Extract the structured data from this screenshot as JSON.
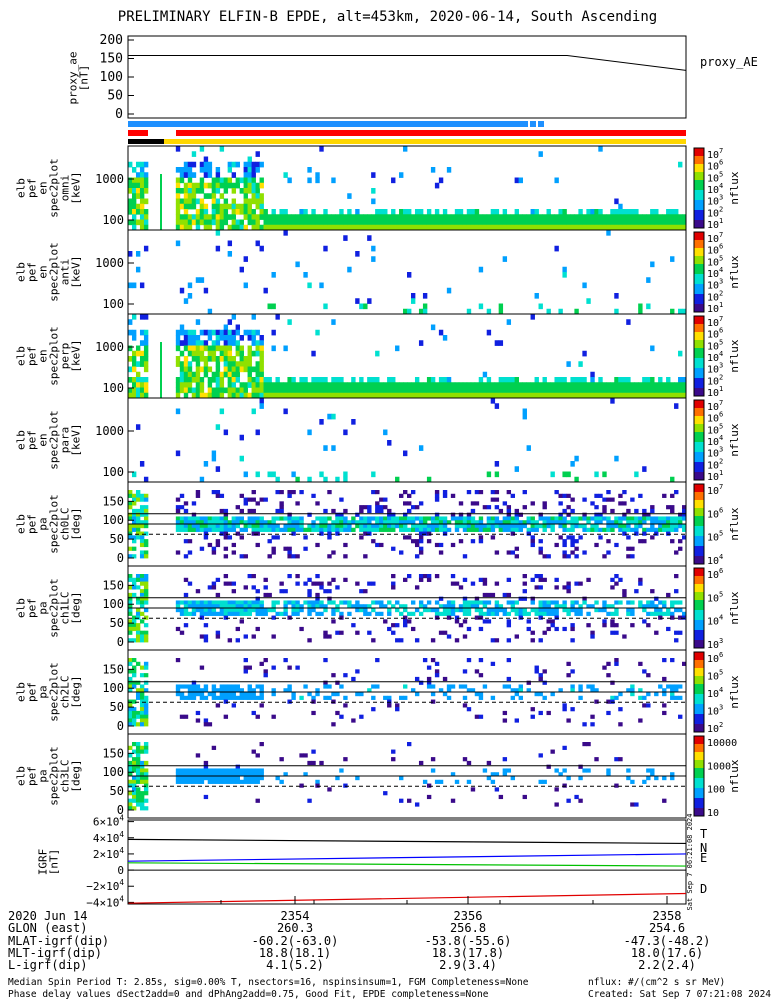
{
  "title": "PRELIMINARY ELFIN-B EPDE, alt=453km, 2020-06-14, South Ascending",
  "proxy_ae": {
    "ylabel": "proxy_ae\n[nT]",
    "legend": "proxy_AE",
    "yticks": [
      "200",
      "150",
      "100",
      "50",
      "0"
    ],
    "ylim": [
      0,
      200
    ],
    "series": [
      {
        "t": 0.0,
        "v": 158
      },
      {
        "t": 0.787,
        "v": 158
      },
      {
        "t": 1.0,
        "v": 118
      }
    ]
  },
  "panels": [
    {
      "id": "pef_en_spec2plot_omni",
      "ylabel": "elb\npef\nen\nspec2plot\nomni\n[keV]",
      "yticks": [
        "1000",
        "100"
      ],
      "cbar_ticks": [
        "10^7",
        "10^6",
        "10^5",
        "10^4",
        "10^3",
        "10^2",
        "10^1"
      ],
      "cbar_label": "nflux",
      "kind": "energy",
      "intensity": 1.0
    },
    {
      "id": "pef_en_spec2plot_anti",
      "ylabel": "elb\npef\nen\nspec2plot\nanti\n[keV]",
      "yticks": [
        "1000",
        "100"
      ],
      "cbar_ticks": [
        "10^7",
        "10^6",
        "10^5",
        "10^4",
        "10^3",
        "10^2",
        "10^1"
      ],
      "cbar_label": "nflux",
      "kind": "energy",
      "intensity": 0.25
    },
    {
      "id": "pef_en_spec2plot_perp",
      "ylabel": "elb\npef\nen\nspec2plot\nperp\n[keV]",
      "yticks": [
        "1000",
        "100"
      ],
      "cbar_ticks": [
        "10^7",
        "10^6",
        "10^5",
        "10^4",
        "10^3",
        "10^2",
        "10^1"
      ],
      "cbar_label": "nflux",
      "kind": "energy",
      "intensity": 1.0
    },
    {
      "id": "pef_en_spec2plot_para",
      "ylabel": "elb\npef\nen\nspec2plot\npara\n[keV]",
      "yticks": [
        "1000",
        "100"
      ],
      "cbar_ticks": [
        "10^7",
        "10^6",
        "10^5",
        "10^4",
        "10^3",
        "10^2",
        "10^1"
      ],
      "cbar_label": "nflux",
      "kind": "energy",
      "intensity": 0.2
    },
    {
      "id": "pef_pa_spec2plot_ch0LC",
      "ylabel": "elb\npef\npa\nspec2plot\nch0LC\n[deg]",
      "yticks": [
        "150",
        "100",
        "50",
        "0"
      ],
      "cbar_ticks": [
        "10^7",
        "10^6",
        "10^5",
        "10^4"
      ],
      "cbar_label": "nflux",
      "kind": "pitch",
      "intensity": 1.0
    },
    {
      "id": "pef_pa_spec2plot_ch1LC",
      "ylabel": "elb\npef\npa\nspec2plot\nch1LC\n[deg]",
      "yticks": [
        "150",
        "100",
        "50",
        "0"
      ],
      "cbar_ticks": [
        "10^6",
        "10^5",
        "10^4",
        "10^3"
      ],
      "cbar_label": "nflux",
      "kind": "pitch",
      "intensity": 0.7
    },
    {
      "id": "pef_pa_spec2plot_ch2LC",
      "ylabel": "elb\npef\npa\nspec2plot\nch2LC\n[deg]",
      "yticks": [
        "150",
        "100",
        "50",
        "0"
      ],
      "cbar_ticks": [
        "10^6",
        "10^5",
        "10^4",
        "10^3",
        "10^2"
      ],
      "cbar_label": "nflux",
      "kind": "pitch",
      "intensity": 0.3
    },
    {
      "id": "pef_pa_spec2plot_ch3LC",
      "ylabel": "elb\npef\npa\nspec2plot\nch3LC\n[deg]",
      "yticks": [
        "150",
        "100",
        "50",
        "0"
      ],
      "cbar_ticks": [
        "10000",
        "1000",
        "100",
        "10"
      ],
      "cbar_label": "nflux",
      "kind": "pitch",
      "intensity": 0.15
    }
  ],
  "igrf": {
    "ylabel": "IGRF\n[nT]",
    "yticks": [
      "6×10^4",
      "4×10^4",
      "2×10^4",
      "0",
      "−2×10^4",
      "−4×10^4"
    ],
    "ylim": [
      -42000,
      62000
    ],
    "legend": [
      {
        "label": "T",
        "color": "#000000"
      },
      {
        "label": "N",
        "color": "#0000ff"
      },
      {
        "label": "E",
        "color": "#00c000"
      },
      {
        "label": "D",
        "color": "#e00000"
      }
    ],
    "series": [
      {
        "name": "T",
        "color": "#000000",
        "v0": 38000,
        "v1": 33000
      },
      {
        "name": "N",
        "color": "#0000ff",
        "v0": 11000,
        "v1": 20000
      },
      {
        "name": "E",
        "color": "#00c000",
        "v0": 9000,
        "v1": 5000
      },
      {
        "name": "D",
        "color": "#e00000",
        "v0": -41000,
        "v1": -29000
      }
    ],
    "side_stamp": "Sat Sep  7 06:21:08 2024"
  },
  "xaxis": {
    "row_labels": [
      "2020 Jun 14",
      "GLON (east)",
      "MLAT-igrf(dip)",
      "MLT-igrf(dip)",
      "L-igrf(dip)"
    ],
    "ticks": [
      {
        "time": "2354",
        "glon": "260.3",
        "mlat": "-60.2(-63.0)",
        "mlt": "18.8(18.1)",
        "l": "4.1(5.2)"
      },
      {
        "time": "2356",
        "glon": "256.8",
        "mlat": "-53.8(-55.6)",
        "mlt": "18.3(17.8)",
        "l": "2.9(3.4)"
      },
      {
        "time": "2358",
        "glon": "254.6",
        "mlat": "-47.3(-48.2)",
        "mlt": "18.0(17.6)",
        "l": "2.2(2.4)"
      }
    ]
  },
  "footer": {
    "line1": "Median Spin Period T: 2.85s, sig=0.00% T, nsectors=16, nspinsinsum=1, FGM Completeness=None",
    "line2": "Phase delay values dSect2add=0 and dPhAng2add=0.75, Good Fit, EPDE completeness=None",
    "units": "nflux: #/(cm^2 s sr MeV)",
    "created": "Created: Sat Sep  7 07:21:08 2024"
  },
  "colors": {
    "bar_blue": "#1e90ff",
    "bar_red": "#ff0000",
    "bar_black": "#000000",
    "bar_yellow": "#ffd700"
  }
}
